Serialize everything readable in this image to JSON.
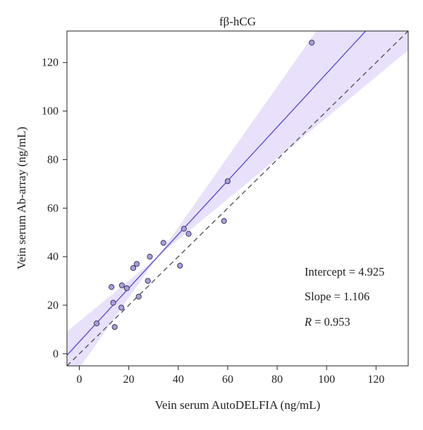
{
  "chart_data": {
    "type": "scatter",
    "title": "fβ-hCG",
    "xlabel": "Vein serum AutoDELFIA (ng/mL)",
    "ylabel": "Vein serum Ab-array (ng/mL)",
    "xlim": [
      -5,
      133
    ],
    "ylim": [
      -5,
      133
    ],
    "xticks": [
      0,
      20,
      40,
      60,
      80,
      100,
      120
    ],
    "yticks": [
      0,
      20,
      40,
      60,
      80,
      100,
      120
    ],
    "grid": false,
    "points": [
      {
        "x": 7,
        "y": 12.5
      },
      {
        "x": 13,
        "y": 27.5
      },
      {
        "x": 13.7,
        "y": 21
      },
      {
        "x": 14.3,
        "y": 11
      },
      {
        "x": 17,
        "y": 19
      },
      {
        "x": 17.2,
        "y": 28.2
      },
      {
        "x": 19.2,
        "y": 27
      },
      {
        "x": 21.8,
        "y": 35.3
      },
      {
        "x": 23.2,
        "y": 37
      },
      {
        "x": 24,
        "y": 23.5
      },
      {
        "x": 27.7,
        "y": 30
      },
      {
        "x": 28.5,
        "y": 40
      },
      {
        "x": 34,
        "y": 45.7
      },
      {
        "x": 40.7,
        "y": 36.3
      },
      {
        "x": 42.3,
        "y": 51.5
      },
      {
        "x": 44.2,
        "y": 49.4
      },
      {
        "x": 58.5,
        "y": 54.7
      },
      {
        "x": 60,
        "y": 71.1
      },
      {
        "x": 94,
        "y": 128.2
      }
    ],
    "fit_line": {
      "intercept": 4.925,
      "slope": 1.106
    },
    "identity_line": {
      "slope": 1,
      "intercept": 0,
      "style": "dashed"
    },
    "confidence_band": {
      "lower_slope": 0.84,
      "upper_slope": 1.45
    },
    "annotations": [
      {
        "label": "Intercept",
        "value": "4.925"
      },
      {
        "label": "Slope",
        "value": "1.106"
      },
      {
        "label": "R",
        "value": "0.953"
      }
    ],
    "colors": {
      "band": "#e9e1fb",
      "fit_line": "#5d4fd1",
      "identity_line": "#555555",
      "marker_fill": "#a99de2",
      "marker_stroke": "#3b3b55"
    }
  }
}
